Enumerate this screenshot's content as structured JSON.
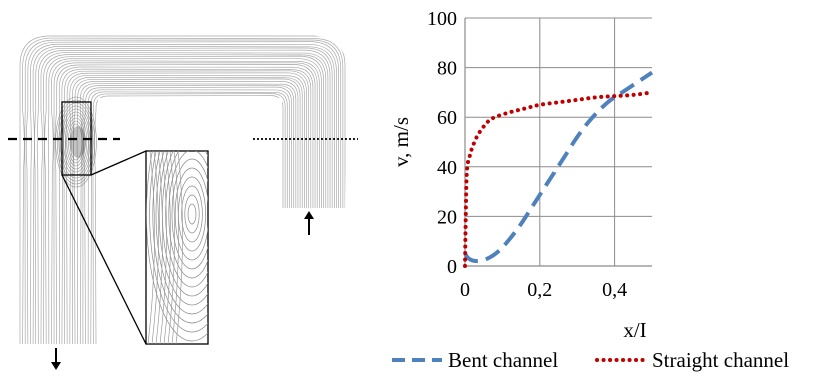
{
  "chart_data": {
    "type": "line",
    "xlabel": "x/I",
    "ylabel": "v, m/s",
    "xlim": [
      0,
      0.5
    ],
    "ylim": [
      0,
      100
    ],
    "x_ticks": [
      0,
      0.2,
      0.4
    ],
    "x_tick_labels": [
      "0",
      "0,2",
      "0,4"
    ],
    "y_ticks": [
      0,
      20,
      40,
      60,
      80,
      100
    ],
    "y_tick_labels": [
      "0",
      "20",
      "40",
      "60",
      "80",
      "100"
    ],
    "grid": "on",
    "legend_position": "bottom",
    "series": [
      {
        "name": "Bent channel",
        "color": "#4F81BD",
        "style": "dashed",
        "x": [
          0,
          0.01,
          0.03,
          0.06,
          0.09,
          0.12,
          0.15,
          0.18,
          0.21,
          0.24,
          0.27,
          0.3,
          0.33,
          0.36,
          0.39,
          0.42,
          0.45,
          0.48,
          0.5
        ],
        "y": [
          5,
          3,
          2,
          3,
          6,
          11,
          17,
          24,
          31,
          38,
          45,
          52,
          58,
          63,
          67,
          70,
          73,
          76,
          78
        ]
      },
      {
        "name": "Straight channel",
        "color": "#C00000",
        "style": "dotted",
        "x": [
          0,
          0.002,
          0.004,
          0.007,
          0.012,
          0.02,
          0.035,
          0.06,
          0.08,
          0.12,
          0.16,
          0.2,
          0.25,
          0.3,
          0.35,
          0.4,
          0.45,
          0.5
        ],
        "y": [
          0,
          20,
          35,
          41,
          44,
          48,
          53,
          58,
          60,
          62,
          63.5,
          65,
          66,
          67,
          68,
          68.5,
          69,
          70
        ]
      }
    ]
  },
  "annotations": {
    "left_panel": "streamline flow visualization in bent channel with zoomed inset",
    "arrow_icon": "arrow-icon"
  }
}
